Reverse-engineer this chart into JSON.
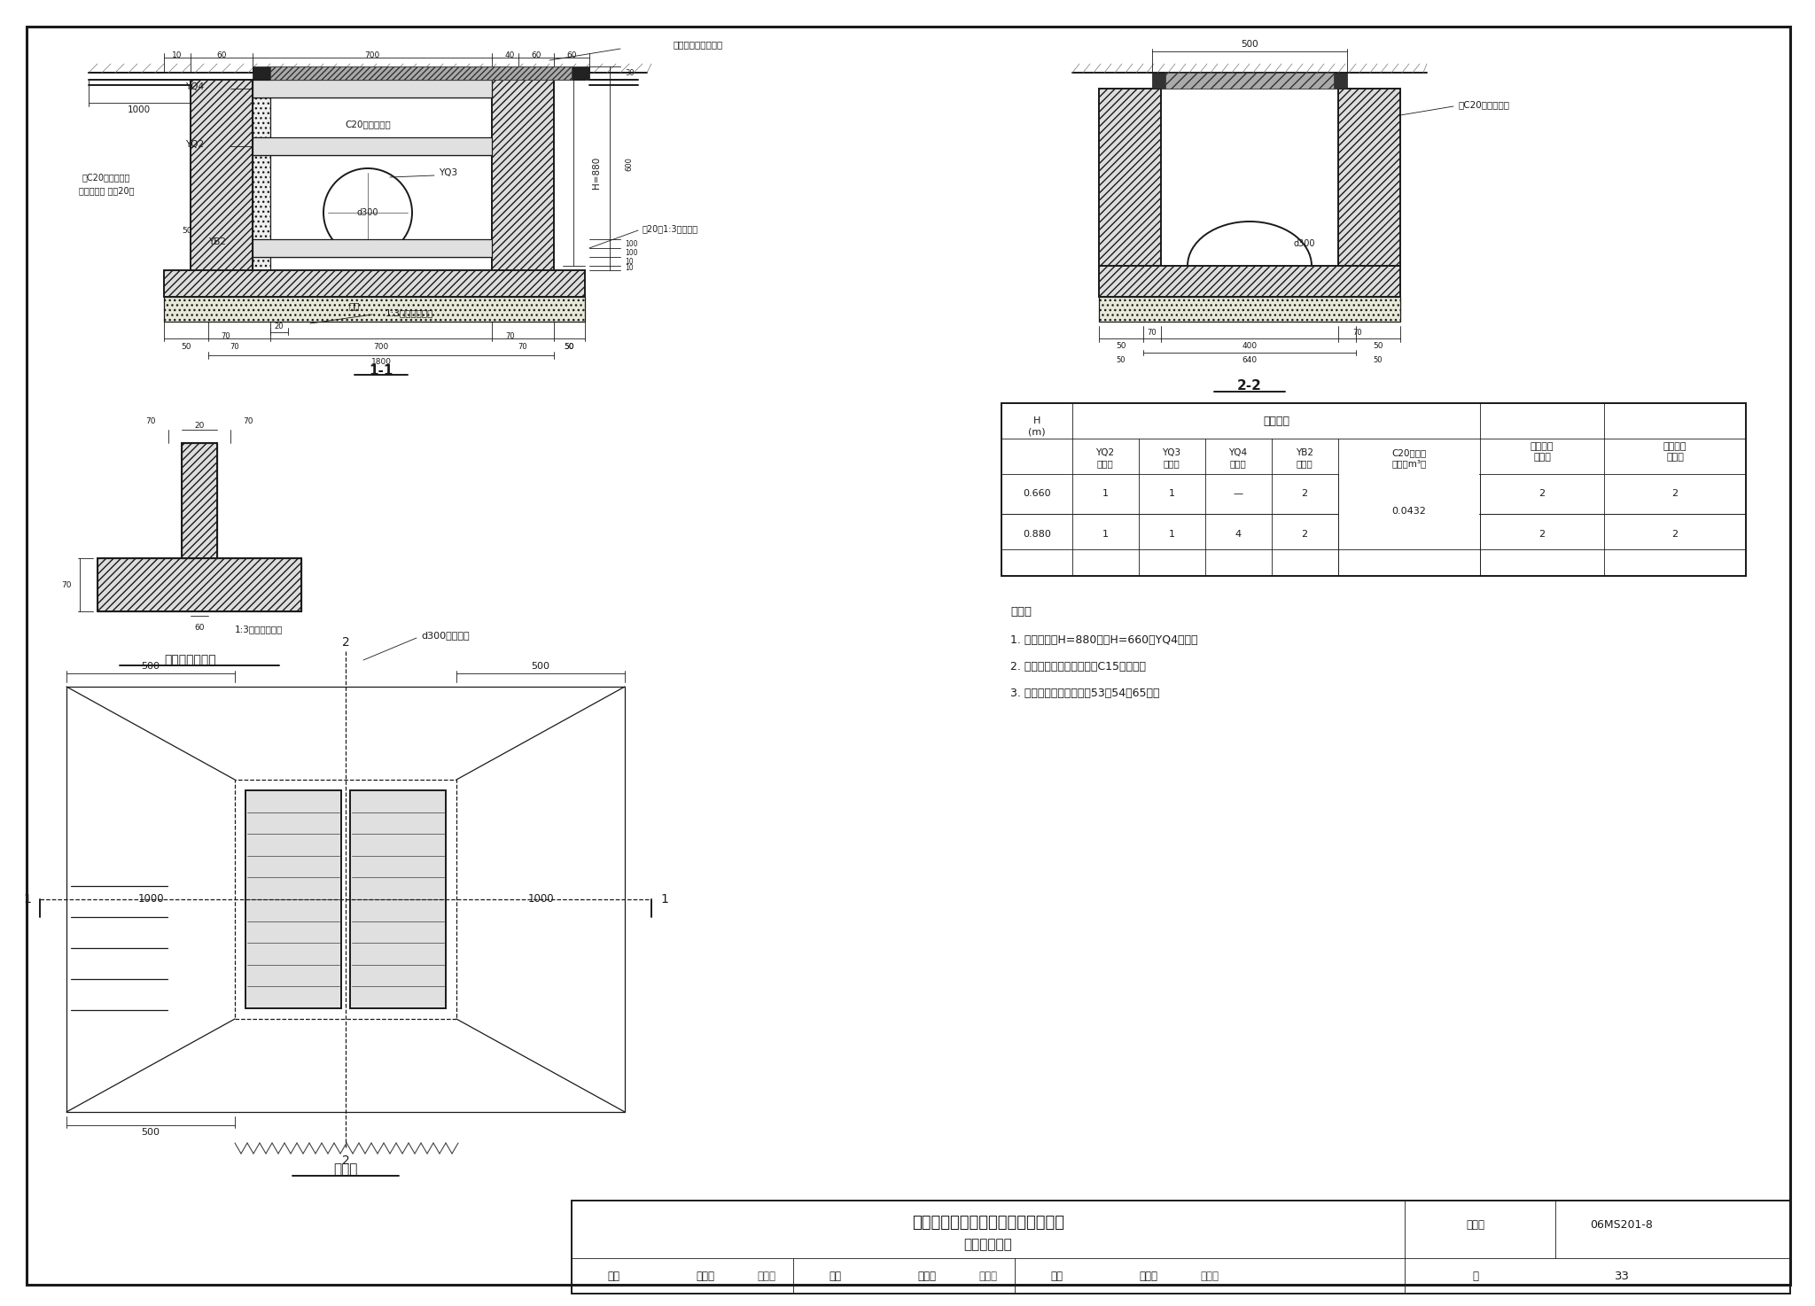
{
  "title": "预制混凝土装配式平算式双算雨水口",
  "subtitle": "（铸铁井圈）",
  "drawing_number": "06MS201-8",
  "page": "33",
  "line_color": "#1a1a1a",
  "notes": [
    "说明：",
    "1. 本图所示为H=880，当H=660时YQ4取消。",
    "2. 垫层材料为碎石、粗砂或C15混凝土。",
    "3. 算子及井圈见本图集第53、54、65页。"
  ]
}
